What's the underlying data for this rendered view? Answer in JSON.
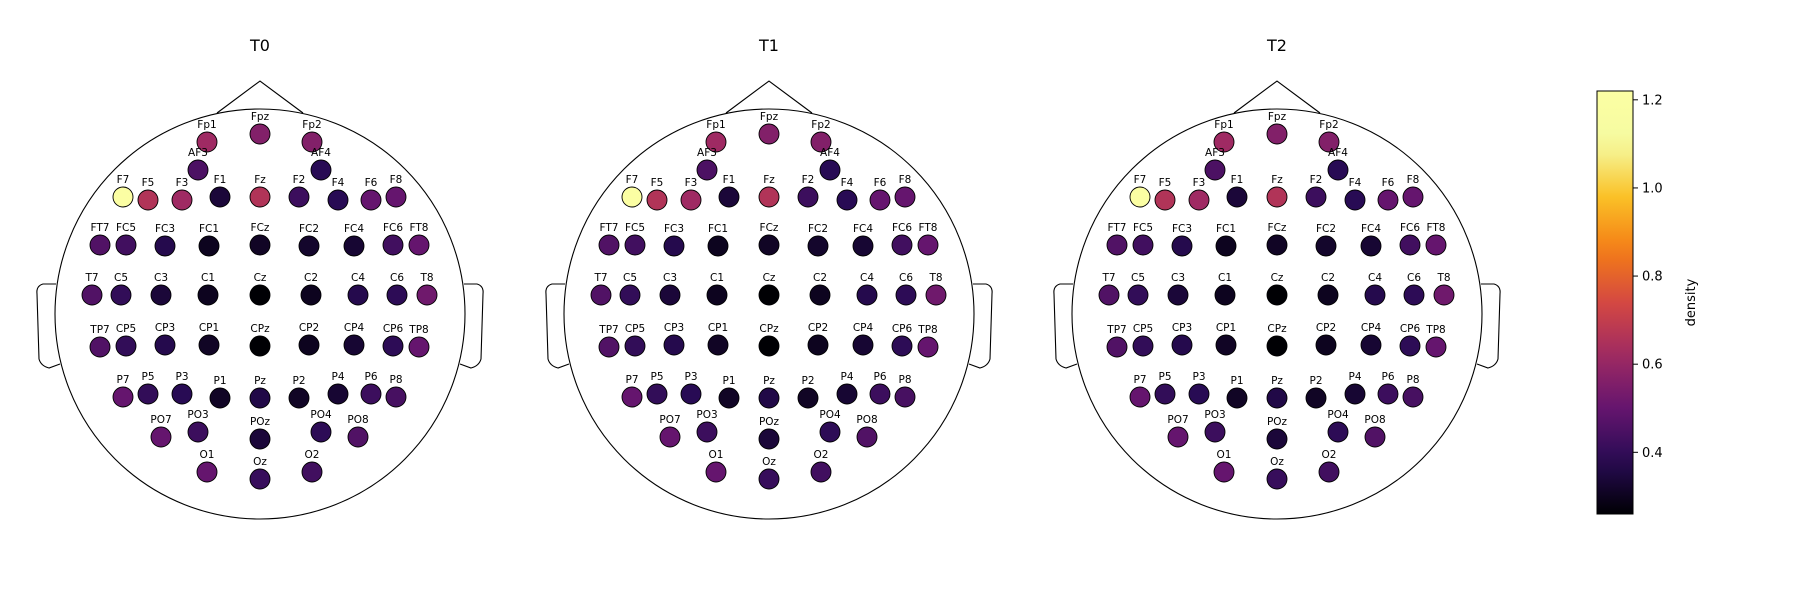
{
  "chart_data": {
    "type": "topomap",
    "colormap": "inferno",
    "colorbar": {
      "label": "density",
      "vmin": 0.26,
      "vmax": 1.22,
      "ticks": [
        {
          "value": 0.4,
          "label": "0.4"
        },
        {
          "value": 0.6,
          "label": "0.6"
        },
        {
          "value": 0.8,
          "label": "0.8"
        },
        {
          "value": 1.0,
          "label": "1.0"
        },
        {
          "value": 1.2,
          "label": "1.2"
        }
      ]
    },
    "panels": [
      {
        "title": "T0",
        "values": {
          "Fp1": 0.62,
          "Fpz": 0.56,
          "Fp2": 0.56,
          "AF3": 0.45,
          "AF4": 0.38,
          "F7": 1.2,
          "F5": 0.66,
          "F3": 0.62,
          "F1": 0.34,
          "Fz": 0.66,
          "F2": 0.42,
          "F4": 0.38,
          "F6": 0.5,
          "F8": 0.5,
          "FT7": 0.46,
          "FC5": 0.43,
          "FC3": 0.37,
          "FC1": 0.3,
          "FCz": 0.31,
          "FC2": 0.32,
          "FC4": 0.33,
          "FC6": 0.43,
          "FT8": 0.5,
          "T7": 0.46,
          "C5": 0.4,
          "C3": 0.34,
          "C1": 0.3,
          "Cz": 0.26,
          "C2": 0.3,
          "C4": 0.37,
          "C6": 0.39,
          "T8": 0.52,
          "TP7": 0.46,
          "CP5": 0.4,
          "CP3": 0.37,
          "CP1": 0.31,
          "CPz": 0.26,
          "CP2": 0.3,
          "CP4": 0.33,
          "CP6": 0.39,
          "TP8": 0.5,
          "P7": 0.5,
          "P5": 0.4,
          "P3": 0.38,
          "P1": 0.31,
          "Pz": 0.36,
          "P2": 0.31,
          "P4": 0.33,
          "P6": 0.42,
          "P8": 0.44,
          "PO7": 0.5,
          "PO3": 0.42,
          "POz": 0.34,
          "PO4": 0.39,
          "PO8": 0.46,
          "O1": 0.5,
          "Oz": 0.41,
          "O2": 0.43
        }
      },
      {
        "title": "T1",
        "values": {
          "Fp1": 0.62,
          "Fpz": 0.56,
          "Fp2": 0.56,
          "AF3": 0.45,
          "AF4": 0.38,
          "F7": 1.2,
          "F5": 0.66,
          "F3": 0.62,
          "F1": 0.34,
          "Fz": 0.66,
          "F2": 0.42,
          "F4": 0.38,
          "F6": 0.5,
          "F8": 0.5,
          "FT7": 0.46,
          "FC5": 0.43,
          "FC3": 0.37,
          "FC1": 0.3,
          "FCz": 0.31,
          "FC2": 0.32,
          "FC4": 0.33,
          "FC6": 0.43,
          "FT8": 0.5,
          "T7": 0.46,
          "C5": 0.4,
          "C3": 0.34,
          "C1": 0.3,
          "Cz": 0.26,
          "C2": 0.3,
          "C4": 0.37,
          "C6": 0.39,
          "T8": 0.52,
          "TP7": 0.46,
          "CP5": 0.4,
          "CP3": 0.37,
          "CP1": 0.31,
          "CPz": 0.26,
          "CP2": 0.3,
          "CP4": 0.33,
          "CP6": 0.39,
          "TP8": 0.5,
          "P7": 0.5,
          "P5": 0.4,
          "P3": 0.38,
          "P1": 0.31,
          "Pz": 0.36,
          "P2": 0.31,
          "P4": 0.33,
          "P6": 0.42,
          "P8": 0.44,
          "PO7": 0.5,
          "PO3": 0.42,
          "POz": 0.34,
          "PO4": 0.39,
          "PO8": 0.46,
          "O1": 0.5,
          "Oz": 0.41,
          "O2": 0.43
        }
      },
      {
        "title": "T2",
        "values": {
          "Fp1": 0.62,
          "Fpz": 0.56,
          "Fp2": 0.56,
          "AF3": 0.45,
          "AF4": 0.38,
          "F7": 1.2,
          "F5": 0.66,
          "F3": 0.62,
          "F1": 0.34,
          "Fz": 0.66,
          "F2": 0.42,
          "F4": 0.38,
          "F6": 0.5,
          "F8": 0.5,
          "FT7": 0.46,
          "FC5": 0.43,
          "FC3": 0.37,
          "FC1": 0.3,
          "FCz": 0.31,
          "FC2": 0.32,
          "FC4": 0.33,
          "FC6": 0.43,
          "FT8": 0.5,
          "T7": 0.46,
          "C5": 0.4,
          "C3": 0.34,
          "C1": 0.3,
          "Cz": 0.26,
          "C2": 0.3,
          "C4": 0.37,
          "C6": 0.39,
          "T8": 0.52,
          "TP7": 0.46,
          "CP5": 0.4,
          "CP3": 0.37,
          "CP1": 0.31,
          "CPz": 0.26,
          "CP2": 0.3,
          "CP4": 0.33,
          "CP6": 0.39,
          "TP8": 0.5,
          "P7": 0.5,
          "P5": 0.4,
          "P3": 0.38,
          "P1": 0.31,
          "Pz": 0.36,
          "P2": 0.31,
          "P4": 0.33,
          "P6": 0.42,
          "P8": 0.44,
          "PO7": 0.5,
          "PO3": 0.42,
          "POz": 0.34,
          "PO4": 0.39,
          "PO8": 0.46,
          "O1": 0.5,
          "Oz": 0.41,
          "O2": 0.43
        }
      }
    ]
  }
}
